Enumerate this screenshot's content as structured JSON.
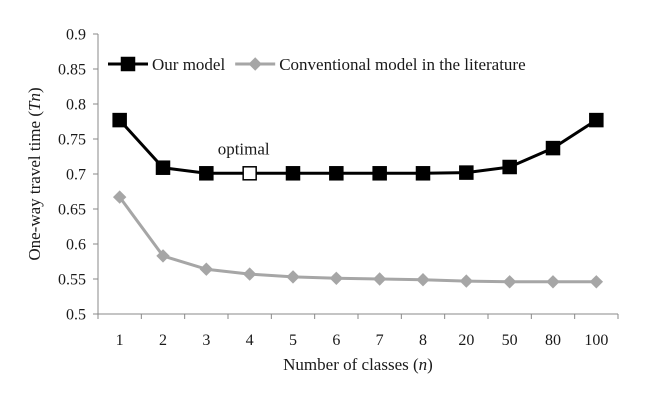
{
  "chart_data": {
    "type": "line",
    "categories": [
      "1",
      "2",
      "3",
      "4",
      "5",
      "6",
      "7",
      "8",
      "20",
      "50",
      "80",
      "100"
    ],
    "series": [
      {
        "name": "Our model",
        "values": [
          0.777,
          0.709,
          0.701,
          0.701,
          0.701,
          0.701,
          0.701,
          0.701,
          0.702,
          0.71,
          0.737,
          0.777
        ],
        "color": "#000000",
        "marker": "square",
        "highlight_index": 3
      },
      {
        "name": "Conventional model in the literature",
        "values": [
          0.667,
          0.583,
          0.564,
          0.557,
          0.553,
          0.551,
          0.55,
          0.549,
          0.547,
          0.546,
          0.546,
          0.546
        ],
        "color": "#a6a6a6",
        "marker": "diamond"
      }
    ],
    "xlabel_parts": [
      "Number of classes (",
      "n",
      ")"
    ],
    "ylabel_parts": [
      "One-way travel time (",
      "Tn",
      ")"
    ],
    "ylim": [
      0.5,
      0.9
    ],
    "yticks": [
      "0.5",
      "0.55",
      "0.6",
      "0.65",
      "0.7",
      "0.75",
      "0.8",
      "0.85",
      "0.9"
    ],
    "annotation": "optimal",
    "legend_position": "top-left",
    "grid": false
  }
}
